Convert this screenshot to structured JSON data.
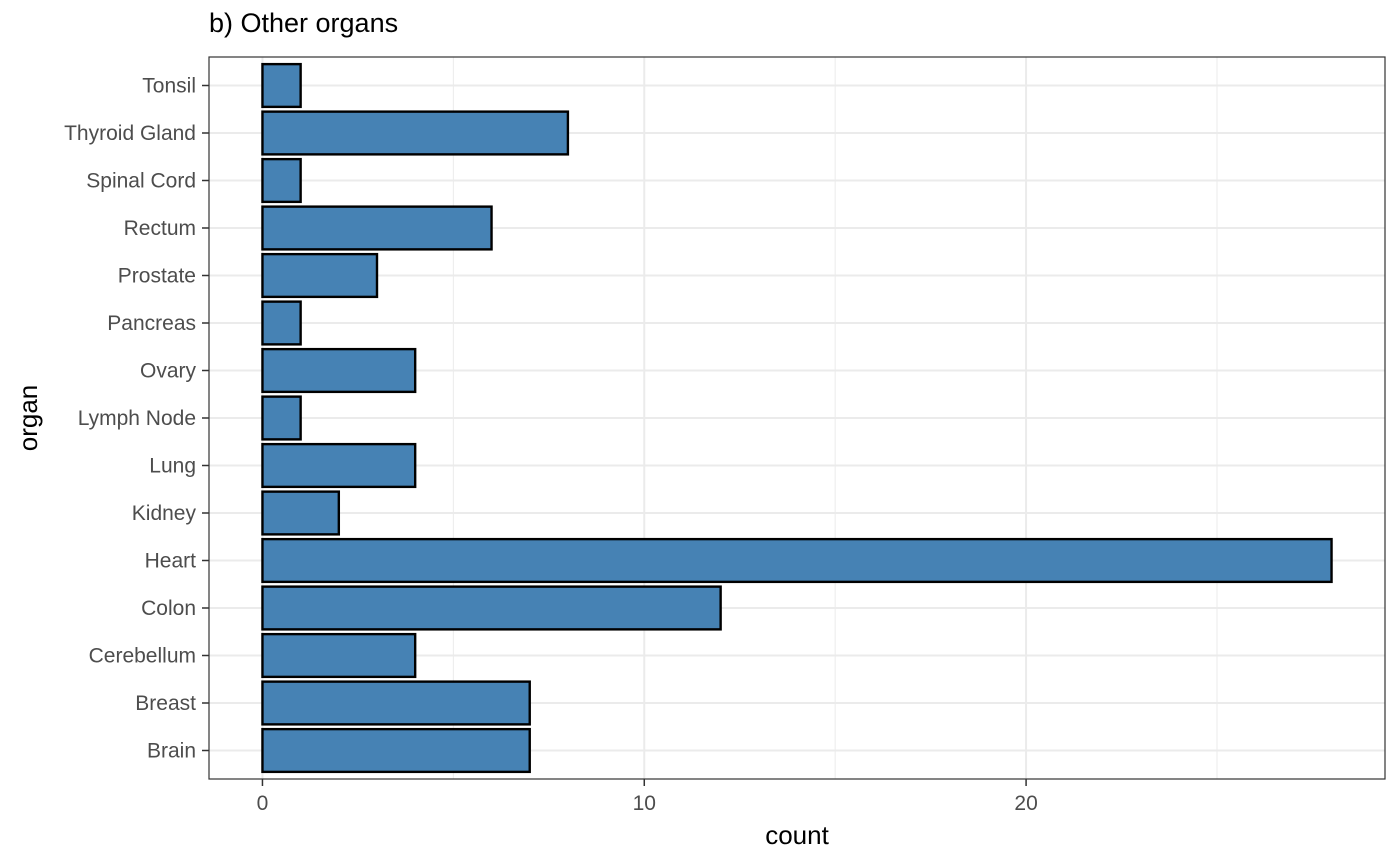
{
  "chart_data": {
    "type": "bar",
    "orientation": "horizontal",
    "title": "b) Other organs",
    "xlabel": "count",
    "ylabel": "organ",
    "categories": [
      "Brain",
      "Breast",
      "Cerebellum",
      "Colon",
      "Heart",
      "Kidney",
      "Lung",
      "Lymph Node",
      "Ovary",
      "Pancreas",
      "Prostate",
      "Rectum",
      "Spinal Cord",
      "Thyroid Gland",
      "Tonsil"
    ],
    "values": [
      7,
      7,
      4,
      12,
      28,
      2,
      4,
      1,
      4,
      1,
      3,
      6,
      1,
      8,
      1
    ],
    "xlim": [
      -1.4,
      29.4
    ],
    "xticks": [
      0,
      10,
      20
    ],
    "xminor": [
      5,
      15,
      25
    ],
    "grid": true,
    "legend": "none",
    "colors": {
      "bar_fill": "#4682B4",
      "bar_stroke": "#000000",
      "grid": "#EBEBEB",
      "panel_border": "#333333"
    }
  }
}
